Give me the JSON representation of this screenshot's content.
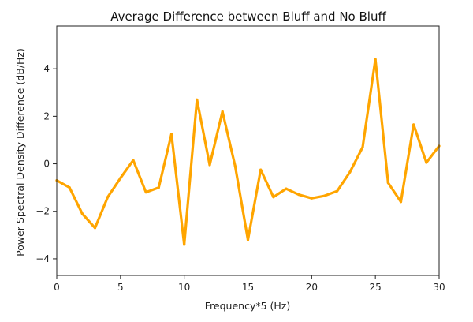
{
  "chart_data": {
    "type": "line",
    "title": "Average Difference between Bluff and No Bluff",
    "xlabel": "Frequency*5 (Hz)",
    "ylabel": "Power Spectral Density Difference (dB/Hz)",
    "xlim": [
      0,
      30
    ],
    "ylim": [
      -4.7,
      5.8
    ],
    "xticks": [
      0,
      5,
      10,
      15,
      20,
      25,
      30
    ],
    "yticks": [
      -4,
      -2,
      0,
      2,
      4
    ],
    "grid": false,
    "line_color": "#ffa500",
    "series": [
      {
        "x": [
          0,
          1,
          2,
          3,
          4,
          5,
          6,
          7,
          8,
          9,
          10,
          11,
          12,
          13,
          14,
          15,
          16,
          17,
          18,
          19,
          20,
          21,
          22,
          23,
          24,
          25,
          26,
          27,
          28,
          29,
          30
        ],
        "values": [
          -0.7,
          -1.0,
          -2.1,
          -2.7,
          -1.4,
          -0.6,
          0.15,
          -1.2,
          -1.0,
          1.25,
          -3.4,
          2.7,
          -0.05,
          2.2,
          -0.1,
          -3.2,
          -0.25,
          -1.4,
          -1.05,
          -1.3,
          -1.45,
          -1.35,
          -1.15,
          -0.35,
          0.7,
          4.4,
          -0.8,
          -1.6,
          1.65,
          0.05,
          0.75
        ]
      }
    ]
  }
}
